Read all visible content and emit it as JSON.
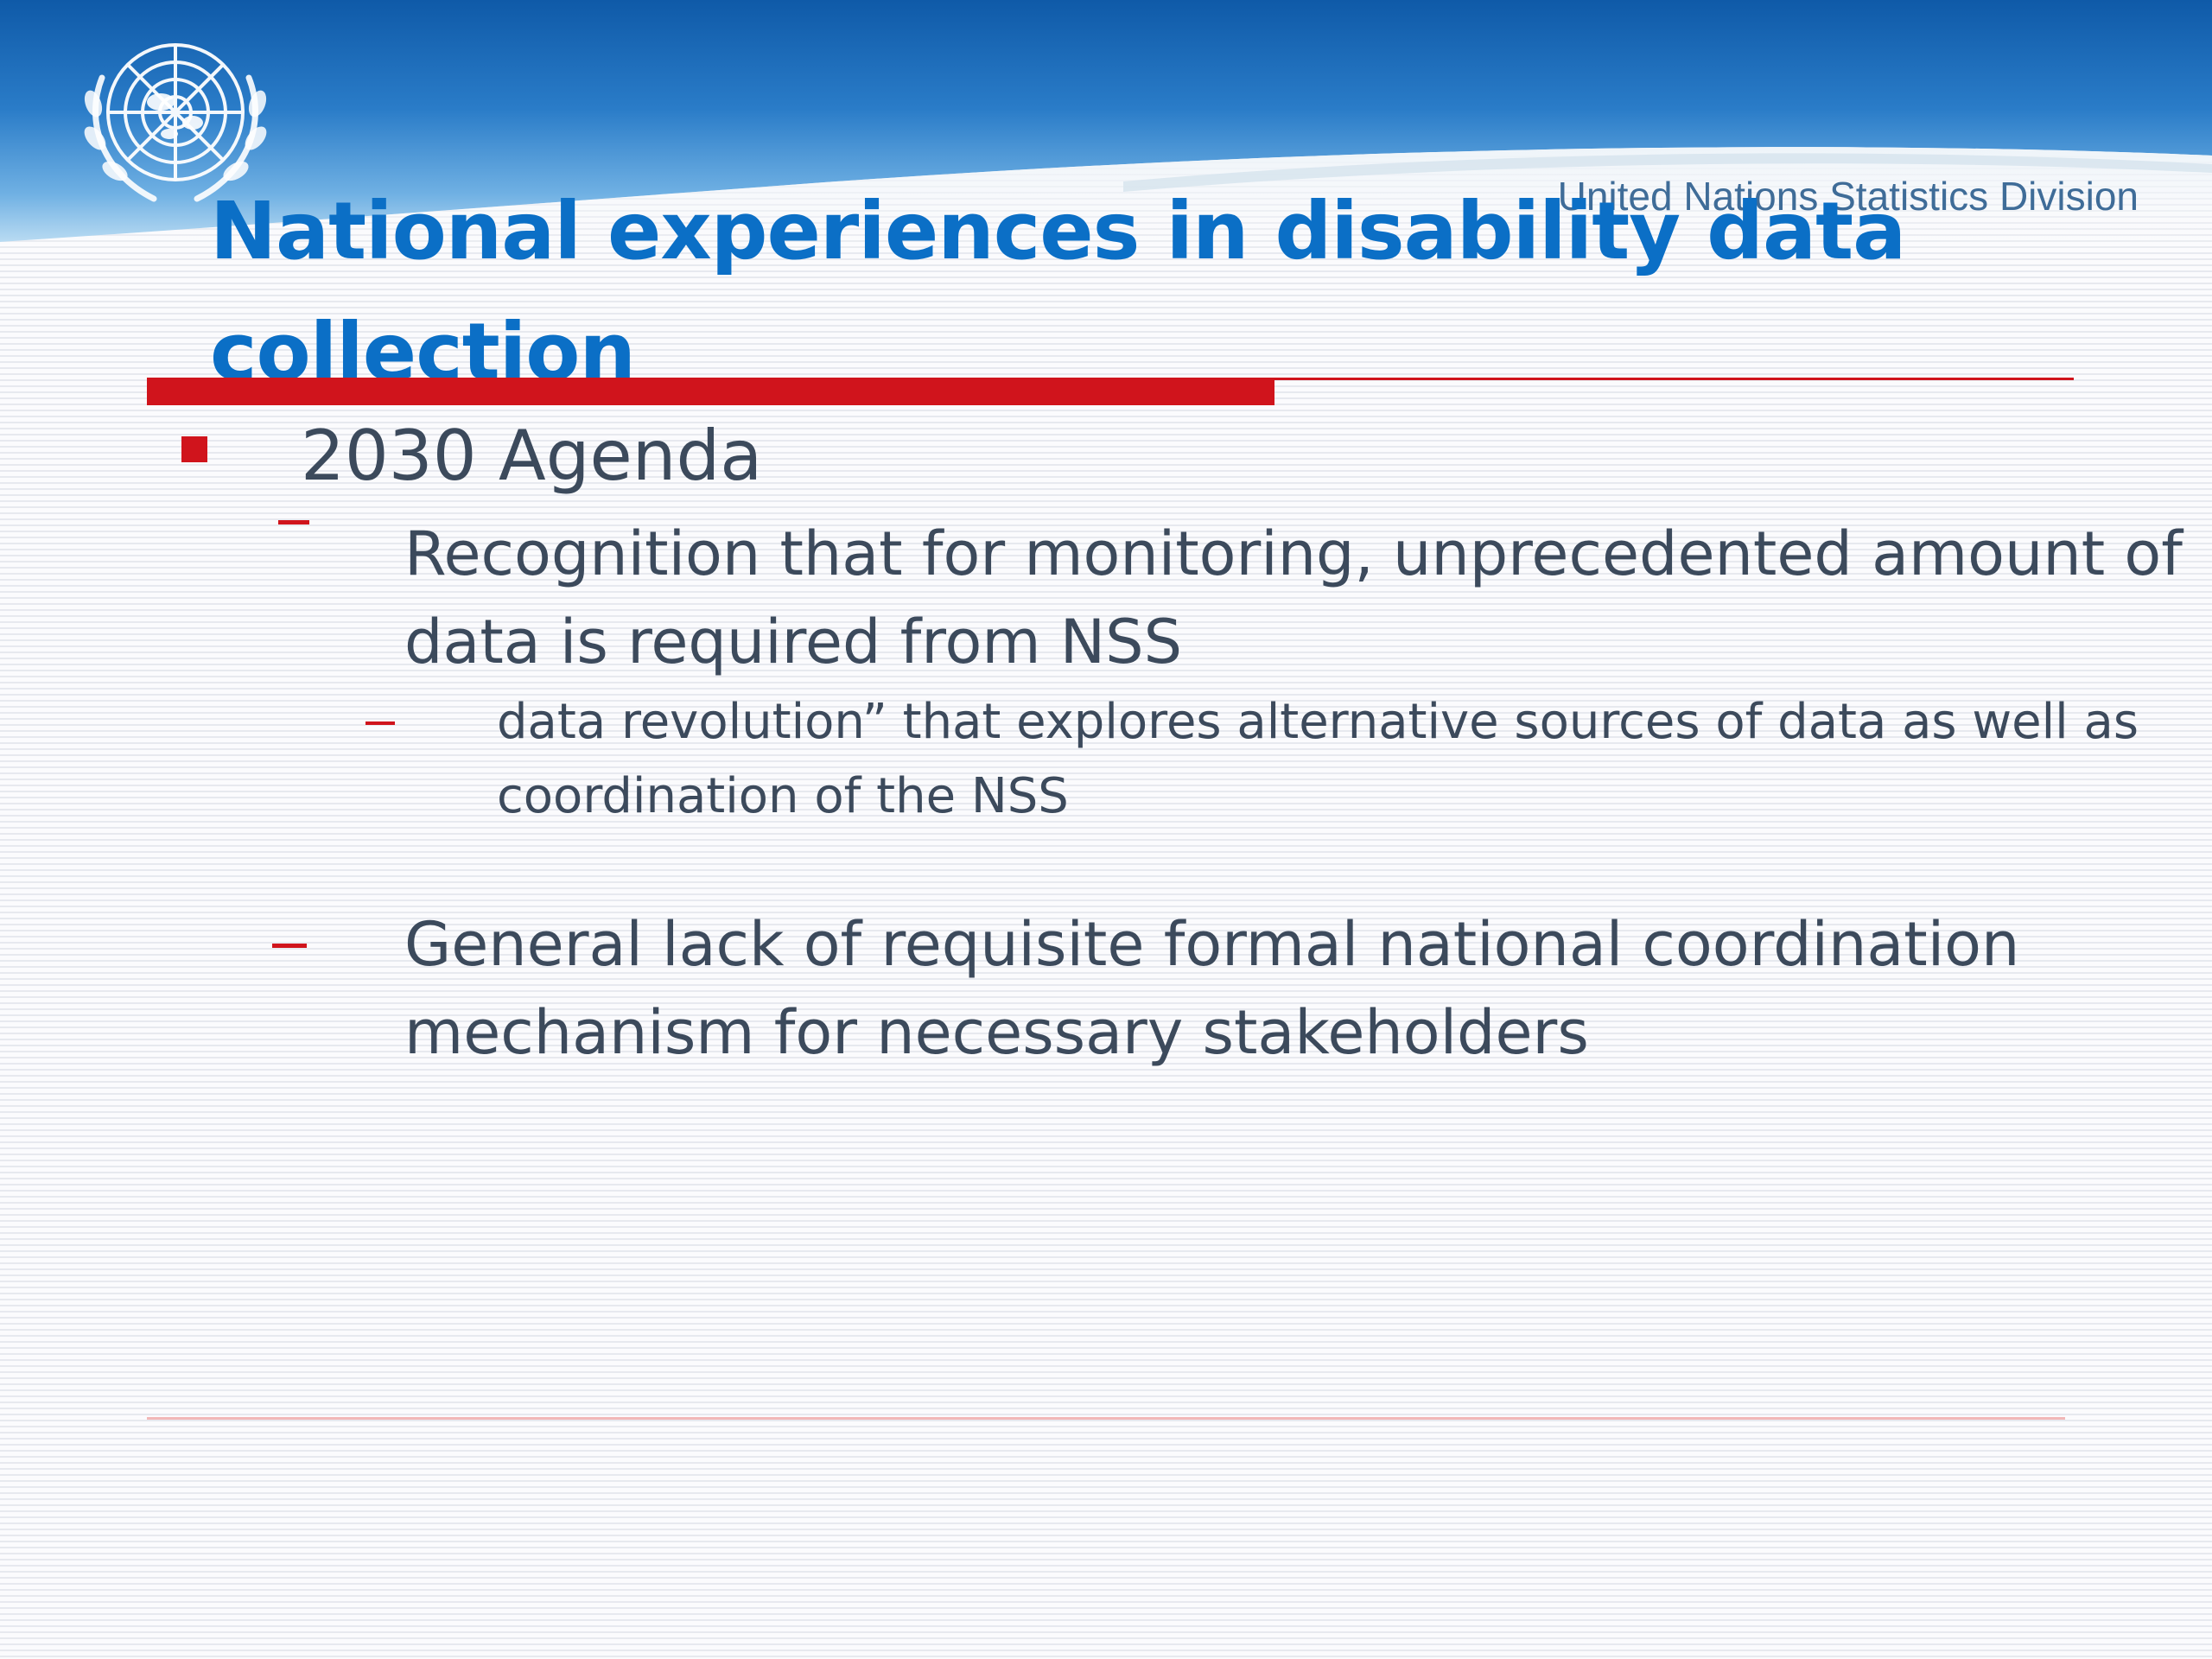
{
  "header": {
    "org_name": "United Nations Statistics Division",
    "emblem_icon": "un-emblem-icon",
    "band_color_top": "#1a63b6",
    "band_color_mid": "#3d8fd4"
  },
  "title": {
    "line1": "National experiences in disability data",
    "line2": "collection",
    "color": "#0b6fc6"
  },
  "accent_color": "#d0141c",
  "content": {
    "level1": {
      "text": "2030 Agenda"
    },
    "level2a": {
      "text": "Recognition that for monitoring, unprecedented amount of data is required from NSS"
    },
    "level3a": {
      "text": "data revolution” that explores alternative sources of data as well as coordination of the NSS"
    },
    "level2b": {
      "text": "General lack of requisite formal national coordination mechanism for necessary stakeholders"
    }
  }
}
